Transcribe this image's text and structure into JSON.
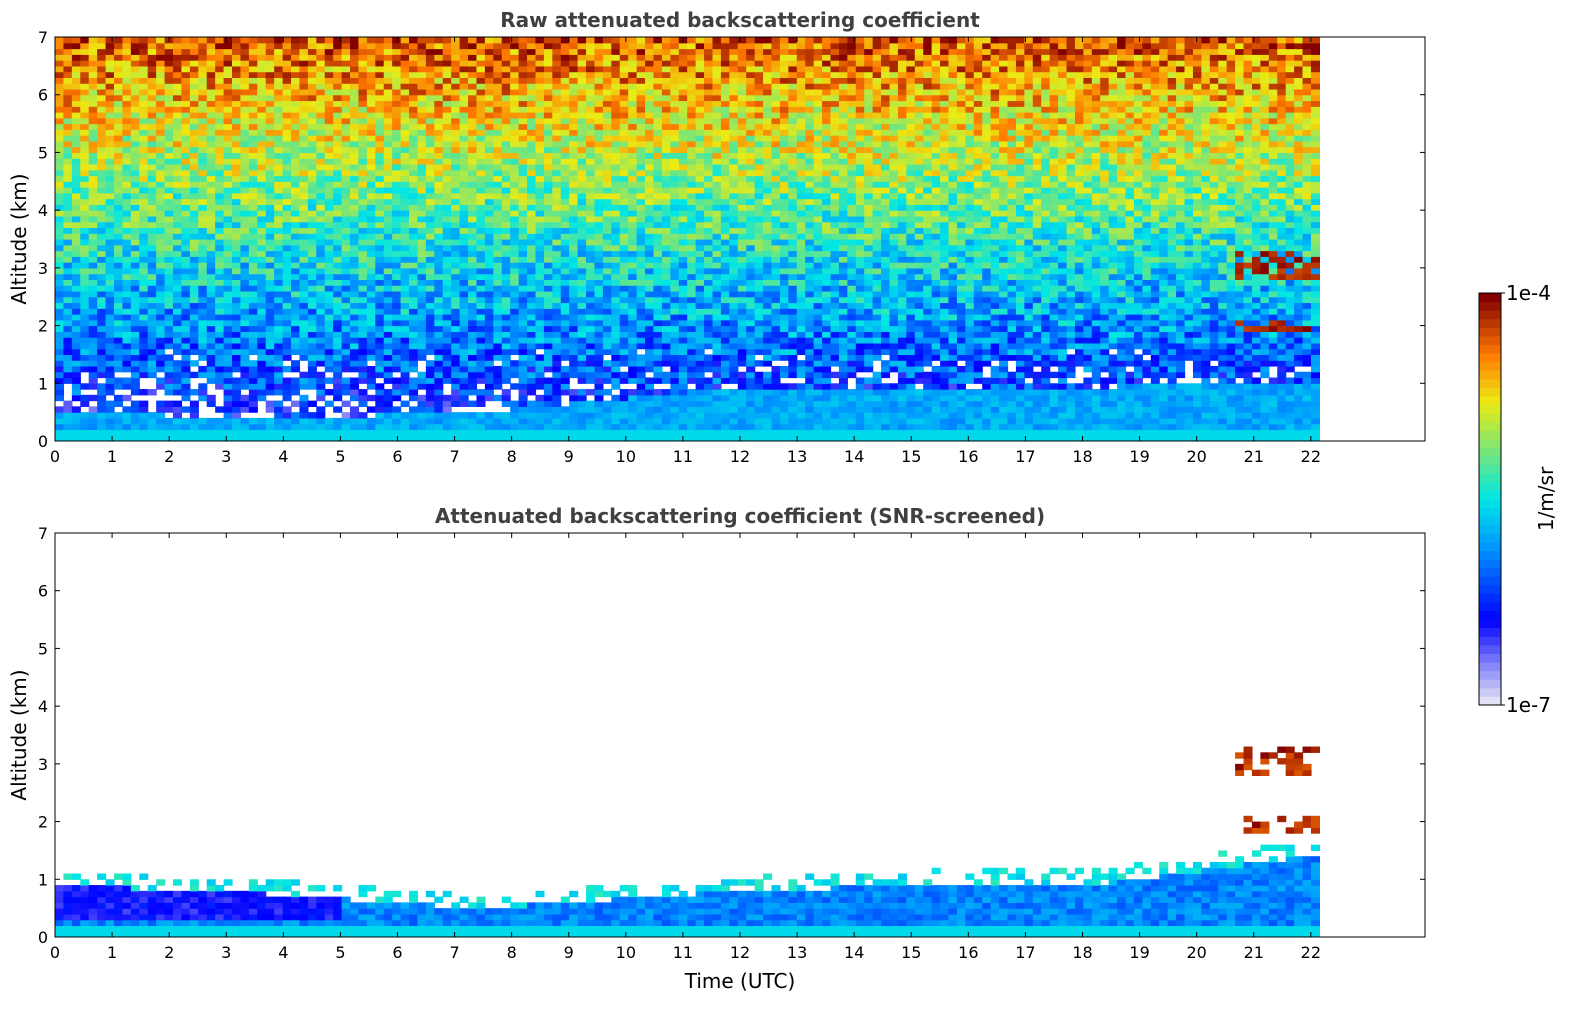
{
  "chart_data": [
    {
      "type": "heatmap",
      "title": "Raw attenuated backscattering coefficient",
      "xlabel": "",
      "ylabel": "Altitude (km)",
      "xlim": [
        0,
        24
      ],
      "ylim": [
        0,
        7
      ],
      "x_ticks": [
        "0",
        "1",
        "2",
        "3",
        "4",
        "5",
        "6",
        "7",
        "8",
        "9",
        "10",
        "11",
        "12",
        "13",
        "14",
        "15",
        "16",
        "17",
        "18",
        "19",
        "20",
        "21",
        "22"
      ],
      "y_ticks": [
        "0",
        "1",
        "2",
        "3",
        "4",
        "5",
        "6",
        "7"
      ],
      "data_extent_hours": [
        0,
        22.15
      ],
      "features": [
        {
          "kind": "boundary_layer",
          "time_range": [
            0,
            22.15
          ],
          "altitude_km_top": [
            0.45,
            0.35,
            0.45,
            0.8,
            0.9,
            0.9,
            1.0
          ],
          "value": "high"
        },
        {
          "kind": "cloud",
          "time_range": [
            20.6,
            22.15
          ],
          "altitude_km": [
            1.9,
            3.3
          ],
          "value": "1e-4"
        }
      ],
      "grid": false
    },
    {
      "type": "heatmap",
      "title": "Attenuated backscattering coefficient (SNR-screened)",
      "xlabel": "Time (UTC)",
      "ylabel": "Altitude (km)",
      "xlim": [
        0,
        24
      ],
      "ylim": [
        0,
        7
      ],
      "x_ticks": [
        "0",
        "1",
        "2",
        "3",
        "4",
        "5",
        "6",
        "7",
        "8",
        "9",
        "10",
        "11",
        "12",
        "13",
        "14",
        "15",
        "16",
        "17",
        "18",
        "19",
        "20",
        "21",
        "22"
      ],
      "y_ticks": [
        "0",
        "1",
        "2",
        "3",
        "4",
        "5",
        "6",
        "7"
      ],
      "data_extent_hours": [
        0,
        22.15
      ],
      "features": [
        {
          "kind": "boundary_layer",
          "time_range": [
            0,
            22.15
          ],
          "altitude_km_top": [
            0.85,
            0.7,
            0.45,
            0.7,
            0.85,
            0.9,
            1.4
          ],
          "value": "medium"
        },
        {
          "kind": "cloud",
          "time_range": [
            20.6,
            22.15
          ],
          "altitude_km": [
            1.8,
            3.3
          ],
          "value": "1e-4"
        }
      ],
      "grid": false
    }
  ],
  "colorbar": {
    "label": "1/m/sr",
    "max_label": "1e-4",
    "min_label": "1e-7",
    "scale": "log",
    "colormap": "jet"
  },
  "colors": {
    "title": "#404040",
    "axis": "#000000"
  }
}
